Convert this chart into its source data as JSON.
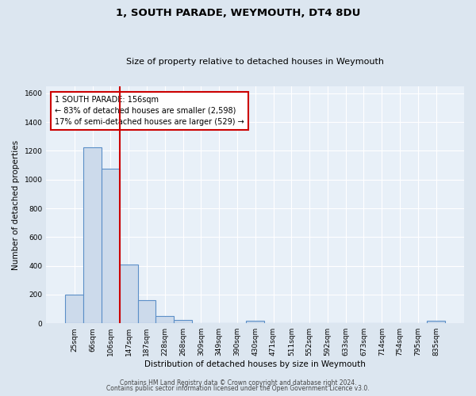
{
  "title": "1, SOUTH PARADE, WEYMOUTH, DT4 8DU",
  "subtitle": "Size of property relative to detached houses in Weymouth",
  "xlabel": "Distribution of detached houses by size in Weymouth",
  "ylabel": "Number of detached properties",
  "bar_labels": [
    "25sqm",
    "66sqm",
    "106sqm",
    "147sqm",
    "187sqm",
    "228sqm",
    "268sqm",
    "309sqm",
    "349sqm",
    "390sqm",
    "430sqm",
    "471sqm",
    "511sqm",
    "552sqm",
    "592sqm",
    "633sqm",
    "673sqm",
    "714sqm",
    "754sqm",
    "795sqm",
    "835sqm"
  ],
  "bar_values": [
    200,
    1225,
    1075,
    410,
    160,
    50,
    25,
    0,
    0,
    0,
    15,
    0,
    0,
    0,
    0,
    0,
    0,
    0,
    0,
    0,
    15
  ],
  "bar_color": "#ccdaeb",
  "bar_edge_color": "#5b8fc7",
  "red_line_x": 2.5,
  "ylim": [
    0,
    1650
  ],
  "yticks": [
    0,
    200,
    400,
    600,
    800,
    1000,
    1200,
    1400,
    1600
  ],
  "annotation_title": "1 SOUTH PARADE: 156sqm",
  "annotation_line1": "← 83% of detached houses are smaller (2,598)",
  "annotation_line2": "17% of semi-detached houses are larger (529) →",
  "annotation_box_color": "#ffffff",
  "annotation_box_edge": "#cc0000",
  "footer_line1": "Contains HM Land Registry data © Crown copyright and database right 2024.",
  "footer_line2": "Contains public sector information licensed under the Open Government Licence v3.0.",
  "background_color": "#dce6f0",
  "plot_bg_color": "#e8f0f8",
  "grid_color": "#ffffff",
  "title_fontsize": 9.5,
  "subtitle_fontsize": 8.0,
  "ylabel_fontsize": 7.5,
  "xlabel_fontsize": 7.5,
  "tick_fontsize": 6.5,
  "footer_fontsize": 5.5,
  "ann_fontsize": 7.0
}
